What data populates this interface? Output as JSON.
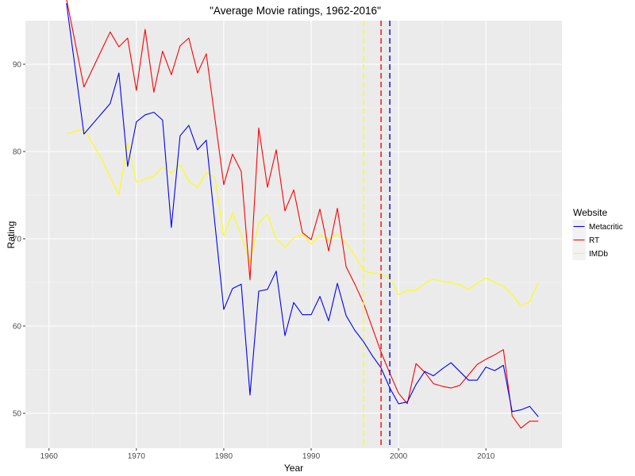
{
  "chart_data": {
    "type": "line",
    "title": "\"Average Movie ratings, 1962-2016\"",
    "xlabel": "Year",
    "ylabel": "Rating",
    "xlim": [
      1957.3,
      2018.7
    ],
    "ylim": [
      46.0,
      95.0
    ],
    "x_ticks": [
      1960,
      1970,
      1980,
      1990,
      2000,
      2010
    ],
    "y_ticks": [
      50,
      60,
      70,
      80,
      90
    ],
    "grid": true,
    "background": "#ebebeb",
    "legend": {
      "title": "Website",
      "placement": "right"
    },
    "series": [
      {
        "name": "Metacritic",
        "color": "#0000ff",
        "points": [
          [
            1962,
            97
          ],
          [
            1964,
            82
          ],
          [
            1967,
            85.5
          ],
          [
            1968,
            89
          ],
          [
            1969,
            78.3
          ],
          [
            1970,
            83.4
          ],
          [
            1971,
            84.2
          ],
          [
            1972,
            84.5
          ],
          [
            1973,
            83.6
          ],
          [
            1974,
            71.3
          ],
          [
            1975,
            81.8
          ],
          [
            1976,
            83
          ],
          [
            1977,
            80.2
          ],
          [
            1978,
            81.3
          ],
          [
            1980,
            61.9
          ],
          [
            1981,
            64.3
          ],
          [
            1982,
            64.8
          ],
          [
            1983,
            52.1
          ],
          [
            1984,
            64
          ],
          [
            1985,
            64.2
          ],
          [
            1986,
            66.3
          ],
          [
            1987,
            58.9
          ],
          [
            1988,
            62.7
          ],
          [
            1989,
            61.3
          ],
          [
            1990,
            61.3
          ],
          [
            1991,
            63.4
          ],
          [
            1992,
            60.6
          ],
          [
            1993,
            64.9
          ],
          [
            1994,
            61.2
          ],
          [
            1995,
            59.5
          ],
          [
            1996,
            58.2
          ],
          [
            1997,
            56.6
          ],
          [
            1998,
            55.2
          ],
          [
            1999,
            52.9
          ],
          [
            2000,
            51.1
          ],
          [
            2001,
            51.3
          ],
          [
            2002,
            53.3
          ],
          [
            2003,
            54.8
          ],
          [
            2004,
            54.3
          ],
          [
            2005,
            55.1
          ],
          [
            2006,
            55.8
          ],
          [
            2007,
            54.8
          ],
          [
            2008,
            53.8
          ],
          [
            2009,
            53.8
          ],
          [
            2010,
            55.3
          ],
          [
            2011,
            54.9
          ],
          [
            2012,
            55.5
          ],
          [
            2013,
            50.2
          ],
          [
            2014,
            50.4
          ],
          [
            2015,
            50.8
          ],
          [
            2016,
            49.6
          ]
        ]
      },
      {
        "name": "RT",
        "color": "#ff0000",
        "points": [
          [
            1962,
            97.5
          ],
          [
            1964,
            87.4
          ],
          [
            1967,
            93.7
          ],
          [
            1968,
            92
          ],
          [
            1969,
            93
          ],
          [
            1970,
            87
          ],
          [
            1971,
            94
          ],
          [
            1972,
            86.8
          ],
          [
            1973,
            91.5
          ],
          [
            1974,
            88.8
          ],
          [
            1975,
            92.1
          ],
          [
            1976,
            93
          ],
          [
            1977,
            89
          ],
          [
            1978,
            91.2
          ],
          [
            1980,
            76.2
          ],
          [
            1981,
            79.7
          ],
          [
            1982,
            77.7
          ],
          [
            1983,
            65.3
          ],
          [
            1984,
            82.7
          ],
          [
            1985,
            75.9
          ],
          [
            1986,
            80.2
          ],
          [
            1987,
            73.2
          ],
          [
            1988,
            75.6
          ],
          [
            1989,
            70.7
          ],
          [
            1990,
            69.9
          ],
          [
            1991,
            73.4
          ],
          [
            1992,
            68.6
          ],
          [
            1993,
            73.5
          ],
          [
            1994,
            66.8
          ],
          [
            1995,
            64.8
          ],
          [
            1996,
            62.6
          ],
          [
            1997,
            59.8
          ],
          [
            1998,
            57
          ],
          [
            1999,
            54.6
          ],
          [
            2000,
            52.3
          ],
          [
            2001,
            51.1
          ],
          [
            2002,
            55.7
          ],
          [
            2003,
            54.7
          ],
          [
            2004,
            53.4
          ],
          [
            2005,
            53.1
          ],
          [
            2006,
            52.9
          ],
          [
            2007,
            53.2
          ],
          [
            2008,
            54.4
          ],
          [
            2009,
            55.6
          ],
          [
            2010,
            56.2
          ],
          [
            2011,
            56.7
          ],
          [
            2012,
            57.3
          ],
          [
            2013,
            49.7
          ],
          [
            2014,
            48.3
          ],
          [
            2015,
            49.1
          ],
          [
            2016,
            49.1
          ]
        ]
      },
      {
        "name": "IMDb",
        "color": "#ffff00",
        "points": [
          [
            1962,
            82
          ],
          [
            1964,
            82.6
          ],
          [
            1966,
            79.2
          ],
          [
            1968,
            75
          ],
          [
            1969,
            81
          ],
          [
            1970,
            76.5
          ],
          [
            1972,
            77.2
          ],
          [
            1973,
            78.2
          ],
          [
            1974,
            77.5
          ],
          [
            1975,
            78.5
          ],
          [
            1976,
            76.6
          ],
          [
            1977,
            75.9
          ],
          [
            1978,
            77.6
          ],
          [
            1979,
            77
          ],
          [
            1980,
            70.3
          ],
          [
            1981,
            73
          ],
          [
            1982,
            70.4
          ],
          [
            1983,
            67.3
          ],
          [
            1984,
            71.8
          ],
          [
            1985,
            72.8
          ],
          [
            1986,
            70
          ],
          [
            1987,
            69
          ],
          [
            1988,
            70.1
          ],
          [
            1989,
            70.5
          ],
          [
            1990,
            69.4
          ],
          [
            1991,
            70.5
          ],
          [
            1992,
            69.9
          ],
          [
            1993,
            70.5
          ],
          [
            1994,
            69.5
          ],
          [
            1995,
            68.1
          ],
          [
            1996,
            66.3
          ],
          [
            1997,
            66.1
          ],
          [
            1998,
            65.9
          ],
          [
            1999,
            65.6
          ],
          [
            2000,
            63.6
          ],
          [
            2001,
            64.1
          ],
          [
            2002,
            64.1
          ],
          [
            2003,
            64.9
          ],
          [
            2004,
            65.4
          ],
          [
            2005,
            65.1
          ],
          [
            2006,
            65
          ],
          [
            2007,
            64.7
          ],
          [
            2008,
            64.2
          ],
          [
            2009,
            64.9
          ],
          [
            2010,
            65.5
          ],
          [
            2011,
            65
          ],
          [
            2012,
            64.6
          ],
          [
            2013,
            63.6
          ],
          [
            2014,
            62.3
          ],
          [
            2015,
            62.8
          ],
          [
            2016,
            65
          ]
        ]
      }
    ],
    "reference_lines": [
      {
        "x": 1996,
        "color": "#ffff00",
        "style": "dashed"
      },
      {
        "x": 1998,
        "color": "#ff0000",
        "style": "dashed"
      },
      {
        "x": 1999,
        "color": "#0000ff",
        "style": "dashed"
      }
    ]
  }
}
